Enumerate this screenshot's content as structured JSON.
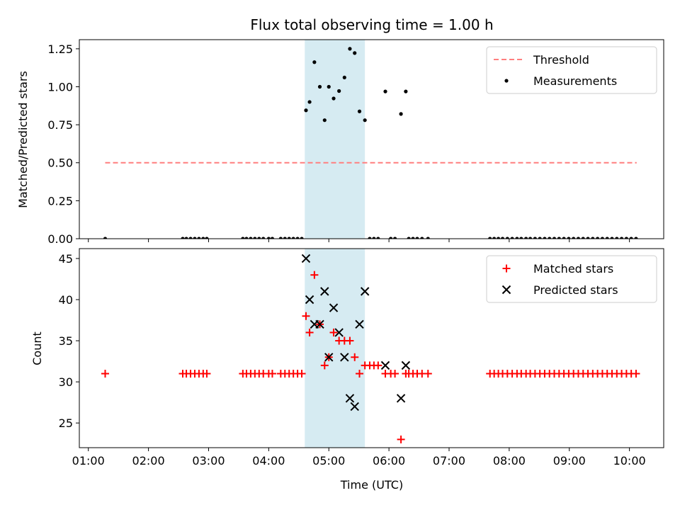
{
  "chart_data": {
    "type": "scatter",
    "title": "Flux total observing time = 1.00 h",
    "xlabel": "Time (UTC)",
    "x_ticks": [
      {
        "value": 1,
        "label": "01:00"
      },
      {
        "value": 2,
        "label": "02:00"
      },
      {
        "value": 3,
        "label": "03:00"
      },
      {
        "value": 4,
        "label": "04:00"
      },
      {
        "value": 5,
        "label": "05:00"
      },
      {
        "value": 6,
        "label": "06:00"
      },
      {
        "value": 7,
        "label": "07:00"
      },
      {
        "value": 8,
        "label": "08:00"
      },
      {
        "value": 9,
        "label": "09:00"
      },
      {
        "value": 10,
        "label": "10:00"
      }
    ],
    "xlim": [
      0.85,
      10.57
    ],
    "highlight_span": [
      4.6,
      5.6
    ],
    "highlight_color": "#add8e6",
    "panels": [
      {
        "ylabel": "Matched/Predicted stars",
        "ylim": [
          0,
          1.31
        ],
        "yticks": [
          0,
          0.25,
          0.5,
          0.75,
          1.0,
          1.25
        ],
        "ytick_labels": [
          "0.00",
          "0.25",
          "0.50",
          "0.75",
          "1.00",
          "1.25"
        ],
        "legend": [
          "Threshold",
          "Measurements"
        ],
        "threshold": {
          "name": "Threshold",
          "y": 0.5,
          "x_range": [
            1.28,
            10.12
          ],
          "color": "#ff7f7f"
        },
        "series": [
          {
            "name": "Measurements",
            "marker": "dot",
            "color": "#000000",
            "x": [
              1.28,
              2.57,
              2.63,
              2.7,
              2.77,
              2.84,
              2.91,
              2.97,
              3.57,
              3.63,
              3.7,
              3.77,
              3.84,
              3.91,
              4.0,
              4.06,
              4.2,
              4.27,
              4.34,
              4.41,
              4.48,
              4.55,
              4.62,
              4.68,
              4.76,
              4.85,
              4.93,
              5.0,
              5.08,
              5.17,
              5.26,
              5.35,
              5.43,
              5.51,
              5.6,
              5.68,
              5.75,
              5.82,
              5.94,
              6.03,
              6.1,
              6.2,
              6.28,
              6.33,
              6.4,
              6.47,
              6.55,
              6.65,
              7.68,
              7.75,
              7.82,
              7.89,
              7.97,
              8.05,
              8.13,
              8.2,
              8.28,
              8.35,
              8.43,
              8.51,
              8.59,
              8.67,
              8.75,
              8.83,
              8.91,
              8.99,
              9.07,
              9.15,
              9.23,
              9.31,
              9.39,
              9.47,
              9.55,
              9.63,
              9.71,
              9.79,
              9.87,
              9.95,
              10.03,
              10.11
            ],
            "y": [
              0,
              0,
              0,
              0,
              0,
              0,
              0,
              0,
              0,
              0,
              0,
              0,
              0,
              0,
              0,
              0,
              0,
              0,
              0,
              0,
              0,
              0,
              0.845,
              0.9,
              1.162,
              1.0,
              0.78,
              1.0,
              0.923,
              0.972,
              1.061,
              1.25,
              1.222,
              0.838,
              0.78,
              0,
              0,
              0,
              0.969,
              0,
              0,
              0.821,
              0.969,
              0,
              0,
              0,
              0,
              0,
              0,
              0,
              0,
              0,
              0,
              0,
              0,
              0,
              0,
              0,
              0,
              0,
              0,
              0,
              0,
              0,
              0,
              0,
              0,
              0,
              0,
              0,
              0,
              0,
              0,
              0,
              0,
              0,
              0,
              0,
              0,
              0
            ]
          }
        ]
      },
      {
        "ylabel": "Count",
        "ylim": [
          22,
          46.2
        ],
        "yticks": [
          25,
          30,
          35,
          40,
          45
        ],
        "ytick_labels": [
          "25",
          "30",
          "35",
          "40",
          "45"
        ],
        "legend": [
          "Matched stars",
          "Predicted stars"
        ],
        "series": [
          {
            "name": "Matched stars",
            "marker": "plus",
            "color": "#ff0000",
            "x": [
              1.28,
              2.57,
              2.63,
              2.7,
              2.77,
              2.84,
              2.91,
              2.97,
              3.57,
              3.63,
              3.7,
              3.77,
              3.84,
              3.91,
              4.0,
              4.06,
              4.2,
              4.27,
              4.34,
              4.41,
              4.48,
              4.55,
              4.62,
              4.68,
              4.76,
              4.85,
              4.93,
              5.0,
              5.08,
              5.17,
              5.26,
              5.35,
              5.43,
              5.51,
              5.6,
              5.68,
              5.75,
              5.82,
              5.94,
              6.03,
              6.1,
              6.2,
              6.28,
              6.33,
              6.4,
              6.47,
              6.55,
              6.65,
              7.68,
              7.75,
              7.82,
              7.89,
              7.97,
              8.05,
              8.13,
              8.2,
              8.28,
              8.35,
              8.43,
              8.51,
              8.59,
              8.67,
              8.75,
              8.83,
              8.91,
              8.99,
              9.07,
              9.15,
              9.23,
              9.31,
              9.39,
              9.47,
              9.55,
              9.63,
              9.71,
              9.79,
              9.87,
              9.95,
              10.03,
              10.11
            ],
            "y": [
              31,
              31,
              31,
              31,
              31,
              31,
              31,
              31,
              31,
              31,
              31,
              31,
              31,
              31,
              31,
              31,
              31,
              31,
              31,
              31,
              31,
              31,
              38,
              36,
              43,
              37,
              32,
              33,
              36,
              35,
              35,
              35,
              33,
              31,
              32,
              32,
              32,
              32,
              31,
              31,
              31,
              23,
              31,
              31,
              31,
              31,
              31,
              31,
              31,
              31,
              31,
              31,
              31,
              31,
              31,
              31,
              31,
              31,
              31,
              31,
              31,
              31,
              31,
              31,
              31,
              31,
              31,
              31,
              31,
              31,
              31,
              31,
              31,
              31,
              31,
              31,
              31,
              31,
              31,
              31
            ]
          },
          {
            "name": "Predicted stars",
            "marker": "x",
            "color": "#000000",
            "x": [
              4.62,
              4.68,
              4.76,
              4.85,
              4.93,
              5.0,
              5.08,
              5.17,
              5.26,
              5.35,
              5.43,
              5.51,
              5.6,
              5.94,
              6.2,
              6.28
            ],
            "y": [
              45,
              40,
              37,
              37,
              41,
              33,
              39,
              36,
              33,
              28,
              27,
              37,
              41,
              32,
              28,
              32
            ]
          }
        ]
      }
    ]
  }
}
